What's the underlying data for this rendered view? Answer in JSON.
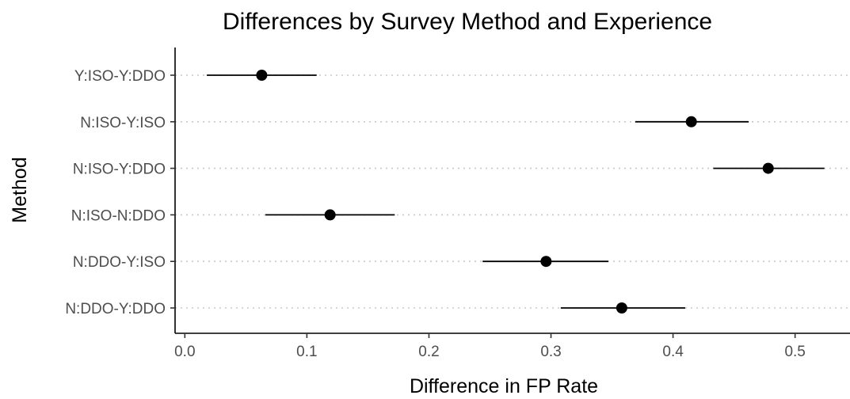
{
  "chart_data": {
    "type": "scatter",
    "subtype": "point-range",
    "title": "Differences by Survey Method and Experience",
    "xlabel": "Difference in FP Rate",
    "ylabel": "Method",
    "xlim": [
      -0.008,
      0.545
    ],
    "xticks": [
      "0.0",
      "0.1",
      "0.2",
      "0.3",
      "0.4",
      "0.5"
    ],
    "grid": "horizontal dotted",
    "categories": [
      "Y:ISO-Y:DDO",
      "N:ISO-Y:ISO",
      "N:ISO-Y:DDO",
      "N:ISO-N:DDO",
      "N:DDO-Y:ISO",
      "N:DDO-Y:DDO"
    ],
    "estimates": [
      0.063,
      0.415,
      0.478,
      0.119,
      0.296,
      0.358
    ],
    "lower": [
      0.018,
      0.369,
      0.433,
      0.066,
      0.244,
      0.308
    ],
    "upper": [
      0.108,
      0.462,
      0.524,
      0.172,
      0.347,
      0.41
    ]
  }
}
